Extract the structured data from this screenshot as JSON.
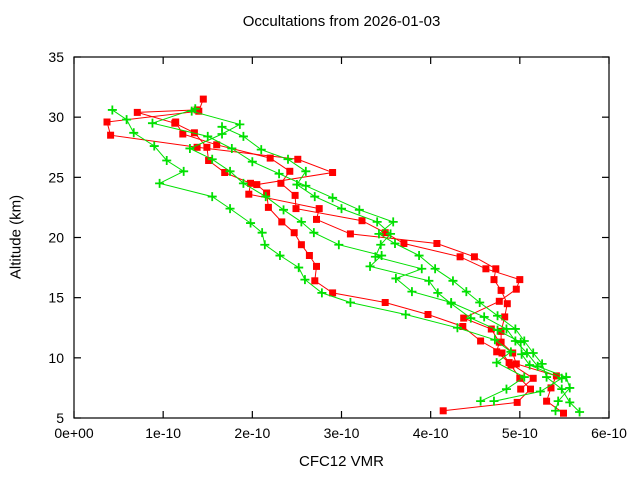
{
  "chart_data": {
    "type": "line",
    "title": "Occultations from 2026-01-03",
    "xlabel": "CFC12 VMR",
    "ylabel": "Altitude (km)",
    "xlim": [
      0,
      6e-10
    ],
    "ylim": [
      5,
      35
    ],
    "grid": false,
    "legend": null,
    "axis_color": "#000000",
    "background_color": "#ffffff",
    "xticks": [
      {
        "label": "0e+00",
        "value": 0
      },
      {
        "label": "1e-10",
        "value": 1e-10
      },
      {
        "label": "2e-10",
        "value": 2e-10
      },
      {
        "label": "3e-10",
        "value": 3e-10
      },
      {
        "label": "4e-10",
        "value": 4e-10
      },
      {
        "label": "5e-10",
        "value": 5e-10
      },
      {
        "label": "6e-10",
        "value": 6e-10
      }
    ],
    "yticks": [
      {
        "label": "5",
        "value": 5
      },
      {
        "label": "10",
        "value": 10
      },
      {
        "label": "15",
        "value": 15
      },
      {
        "label": "20",
        "value": 20
      },
      {
        "label": "25",
        "value": 25
      },
      {
        "label": "30",
        "value": 30
      },
      {
        "label": "35",
        "value": 35
      }
    ],
    "series": [
      {
        "id": "occultation-red-1",
        "color": "#ff0000",
        "marker": "square",
        "points": [
          [
            4.14e-10,
            5.6
          ],
          [
            4.97e-10,
            6.3
          ],
          [
            5.12e-10,
            7.4
          ],
          [
            5e-10,
            8.3
          ],
          [
            4.9e-10,
            9.4
          ],
          [
            4.8e-10,
            10.4
          ],
          [
            4.56e-10,
            11.4
          ],
          [
            4.36e-10,
            12.6
          ],
          [
            3.97e-10,
            13.6
          ],
          [
            3.49e-10,
            14.6
          ],
          [
            2.9e-10,
            15.4
          ],
          [
            2.7e-10,
            16.4
          ],
          [
            2.72e-10,
            17.6
          ],
          [
            2.64e-10,
            18.5
          ],
          [
            2.55e-10,
            19.4
          ],
          [
            2.47e-10,
            20.4
          ],
          [
            2.33e-10,
            21.3
          ],
          [
            2.18e-10,
            22.5
          ],
          [
            2.16e-10,
            23.7
          ],
          [
            2.05e-10,
            24.4
          ],
          [
            2.9e-10,
            25.4
          ],
          [
            2.51e-10,
            26.5
          ],
          [
            1.38e-10,
            27.5
          ],
          [
            4.1e-11,
            28.5
          ],
          [
            3.7e-11,
            29.6
          ],
          [
            1.4e-10,
            30.5
          ],
          [
            1.45e-10,
            31.5
          ]
        ]
      },
      {
        "id": "occultation-red-2",
        "color": "#ff0000",
        "marker": "square",
        "points": [
          [
            5.49e-10,
            5.4
          ],
          [
            5.3e-10,
            6.4
          ],
          [
            5.35e-10,
            7.5
          ],
          [
            5.41e-10,
            8.5
          ],
          [
            4.96e-10,
            9.5
          ],
          [
            4.92e-10,
            10.4
          ],
          [
            4.79e-10,
            11.3
          ],
          [
            4.79e-10,
            12.2
          ],
          [
            4.83e-10,
            13.4
          ],
          [
            4.86e-10,
            14.5
          ],
          [
            4.79e-10,
            15.6
          ],
          [
            4.71e-10,
            16.5
          ],
          [
            4.73e-10,
            17.4
          ],
          [
            4.49e-10,
            18.4
          ],
          [
            4.07e-10,
            19.5
          ],
          [
            3.1e-10,
            20.3
          ],
          [
            2.72e-10,
            21.5
          ],
          [
            2.75e-10,
            22.4
          ],
          [
            1.96e-10,
            23.6
          ],
          [
            1.98e-10,
            24.5
          ],
          [
            1.69e-10,
            25.4
          ],
          [
            1.51e-10,
            26.4
          ],
          [
            1.49e-10,
            27.5
          ],
          [
            1.35e-10,
            28.7
          ],
          [
            1.13e-10,
            29.5
          ],
          [
            7.1e-11,
            30.4
          ],
          [
            1.38e-10,
            30.6
          ]
        ]
      },
      {
        "id": "occultation-red-3",
        "color": "#ff0000",
        "marker": "square",
        "points": [
          [
            5.01e-10,
            7.4
          ],
          [
            5.15e-10,
            8.3
          ],
          [
            4.88e-10,
            9.6
          ],
          [
            4.74e-10,
            10.5
          ],
          [
            4.77e-10,
            11.3
          ],
          [
            4.68e-10,
            12.4
          ],
          [
            4.37e-10,
            13.3
          ],
          [
            4.77e-10,
            14.7
          ],
          [
            4.96e-10,
            15.7
          ],
          [
            5e-10,
            16.5
          ],
          [
            4.62e-10,
            17.4
          ],
          [
            4.33e-10,
            18.4
          ],
          [
            3.7e-10,
            19.5
          ],
          [
            3.49e-10,
            20.4
          ],
          [
            3.23e-10,
            21.4
          ],
          [
            2.49e-10,
            22.4
          ],
          [
            2.48e-10,
            23.5
          ],
          [
            2.32e-10,
            24.5
          ],
          [
            2.42e-10,
            25.5
          ],
          [
            2.2e-10,
            26.6
          ],
          [
            1.6e-10,
            27.7
          ],
          [
            1.22e-10,
            28.6
          ],
          [
            1.14e-10,
            29.6
          ]
        ]
      },
      {
        "id": "occultation-green-1",
        "color": "#00e000",
        "marker": "plus",
        "points": [
          [
            4.56e-10,
            6.4
          ],
          [
            4.85e-10,
            7.4
          ],
          [
            5.05e-10,
            8.4
          ],
          [
            4.74e-10,
            9.6
          ],
          [
            4.9e-10,
            10.5
          ],
          [
            4.72e-10,
            11.5
          ],
          [
            4.3e-10,
            12.5
          ],
          [
            3.72e-10,
            13.6
          ],
          [
            3.1e-10,
            14.6
          ],
          [
            2.78e-10,
            15.4
          ],
          [
            2.59e-10,
            16.5
          ],
          [
            2.52e-10,
            17.5
          ],
          [
            2.31e-10,
            18.5
          ],
          [
            2.14e-10,
            19.4
          ],
          [
            2.11e-10,
            20.4
          ],
          [
            1.98e-10,
            21.2
          ],
          [
            1.75e-10,
            22.4
          ],
          [
            1.55e-10,
            23.4
          ],
          [
            9.6e-11,
            24.5
          ],
          [
            1.23e-10,
            25.5
          ],
          [
            1.04e-10,
            26.4
          ],
          [
            9e-11,
            27.6
          ],
          [
            6.7e-11,
            28.7
          ],
          [
            5.9e-11,
            29.8
          ],
          [
            4.3e-11,
            30.6
          ]
        ]
      },
      {
        "id": "occultation-green-2",
        "color": "#00e000",
        "marker": "plus",
        "points": [
          [
            4.71e-10,
            6.4
          ],
          [
            5.23e-10,
            7.2
          ],
          [
            5.47e-10,
            8.3
          ],
          [
            5.11e-10,
            9.4
          ],
          [
            5.02e-10,
            10.3
          ],
          [
            5.01e-10,
            11.3
          ],
          [
            4.75e-10,
            12.3
          ],
          [
            4.45e-10,
            13.3
          ],
          [
            4.23e-10,
            14.5
          ],
          [
            4.08e-10,
            15.4
          ],
          [
            3.98e-10,
            16.4
          ],
          [
            3.32e-10,
            17.6
          ],
          [
            3.45e-10,
            18.5
          ],
          [
            2.97e-10,
            19.4
          ],
          [
            2.69e-10,
            20.4
          ],
          [
            2.55e-10,
            21.3
          ],
          [
            2.35e-10,
            22.3
          ],
          [
            2.15e-10,
            23.4
          ],
          [
            1.9e-10,
            24.5
          ],
          [
            1.75e-10,
            25.5
          ],
          [
            1.55e-10,
            26.5
          ],
          [
            1.3e-10,
            27.4
          ],
          [
            1.66e-10,
            28.6
          ],
          [
            1.86e-10,
            29.4
          ],
          [
            1.32e-10,
            30.5
          ]
        ]
      },
      {
        "id": "occultation-green-3",
        "color": "#00e000",
        "marker": "plus",
        "points": [
          [
            5.4e-10,
            5.6
          ],
          [
            5.43e-10,
            6.4
          ],
          [
            5.56e-10,
            7.5
          ],
          [
            5.52e-10,
            8.4
          ],
          [
            5.2e-10,
            9.3
          ],
          [
            5.08e-10,
            10.4
          ],
          [
            4.95e-10,
            11.4
          ],
          [
            4.85e-10,
            12.4
          ],
          [
            4.6e-10,
            13.4
          ],
          [
            4.23e-10,
            14.6
          ],
          [
            3.79e-10,
            15.5
          ],
          [
            3.61e-10,
            16.6
          ],
          [
            3.9e-10,
            17.4
          ],
          [
            3.38e-10,
            18.4
          ],
          [
            3.44e-10,
            19.4
          ],
          [
            3.55e-10,
            20.3
          ],
          [
            3.4e-10,
            21.3
          ],
          [
            3e-10,
            22.4
          ],
          [
            2.7e-10,
            23.4
          ],
          [
            2.5e-10,
            24.4
          ],
          [
            2.6e-10,
            25.5
          ],
          [
            2.4e-10,
            26.5
          ],
          [
            2.1e-10,
            27.3
          ],
          [
            1.9e-10,
            28.4
          ],
          [
            1.66e-10,
            29.2
          ]
        ]
      },
      {
        "id": "occultation-green-4",
        "color": "#00e000",
        "marker": "plus",
        "points": [
          [
            5.67e-10,
            5.5
          ],
          [
            5.56e-10,
            6.3
          ],
          [
            5.47e-10,
            7.4
          ],
          [
            5.3e-10,
            8.4
          ],
          [
            5.25e-10,
            9.5
          ],
          [
            5.15e-10,
            10.4
          ],
          [
            5.05e-10,
            11.4
          ],
          [
            4.95e-10,
            12.4
          ],
          [
            4.75e-10,
            13.5
          ],
          [
            4.55e-10,
            14.6
          ],
          [
            4.4e-10,
            15.5
          ],
          [
            4.25e-10,
            16.4
          ],
          [
            4.05e-10,
            17.4
          ],
          [
            3.87e-10,
            18.5
          ],
          [
            3.6e-10,
            19.5
          ],
          [
            3.42e-10,
            20.3
          ],
          [
            3.58e-10,
            21.3
          ],
          [
            3.2e-10,
            22.3
          ],
          [
            2.9e-10,
            23.3
          ],
          [
            2.6e-10,
            24.3
          ],
          [
            2.3e-10,
            25.3
          ],
          [
            2e-10,
            26.3
          ],
          [
            1.77e-10,
            27.4
          ],
          [
            1.5e-10,
            28.4
          ],
          [
            8.8e-11,
            29.5
          ],
          [
            1.36e-10,
            30.7
          ]
        ]
      }
    ]
  }
}
